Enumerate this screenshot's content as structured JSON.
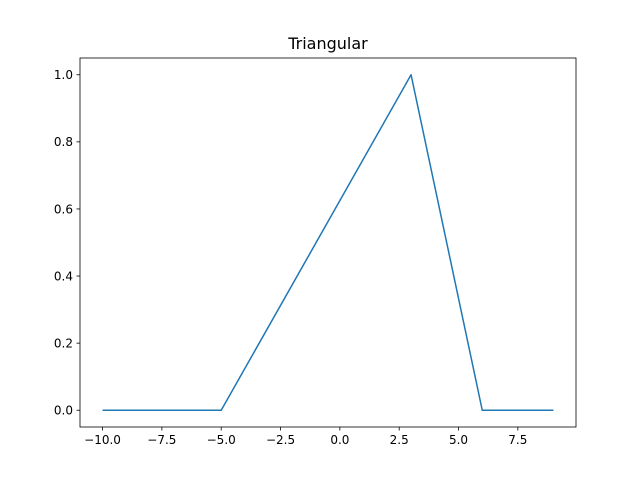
{
  "chart_data": {
    "type": "line",
    "title": "Triangular",
    "xlabel": "",
    "ylabel": "",
    "xlim": [
      -10.95,
      9.95
    ],
    "ylim": [
      -0.05,
      1.05
    ],
    "xticks": [
      -10.0,
      -7.5,
      -5.0,
      -2.5,
      0.0,
      2.5,
      5.0,
      7.5
    ],
    "xtick_labels": [
      "−10.0",
      "−7.5",
      "−5.0",
      "−2.5",
      "0.0",
      "2.5",
      "5.0",
      "7.5"
    ],
    "yticks": [
      0.0,
      0.2,
      0.4,
      0.6,
      0.8,
      1.0
    ],
    "ytick_labels": [
      "0.0",
      "0.2",
      "0.4",
      "0.6",
      "0.8",
      "1.0"
    ],
    "grid": false,
    "series": [
      {
        "color": "#1f77b4",
        "x": [
          -10,
          -5,
          3,
          6,
          9
        ],
        "y": [
          0,
          0,
          1,
          0,
          0
        ]
      }
    ]
  }
}
